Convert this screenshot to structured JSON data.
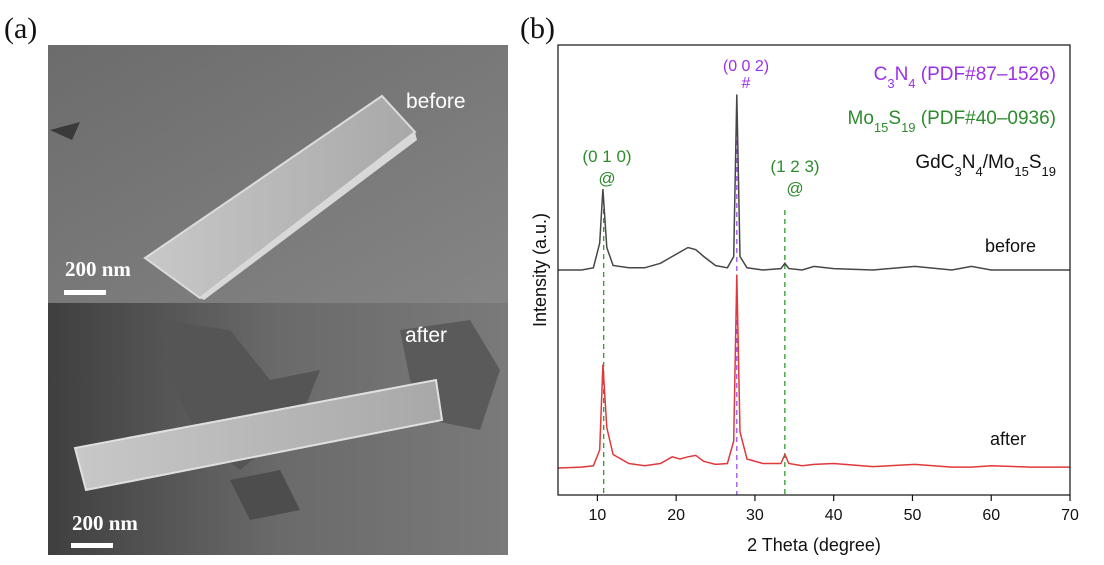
{
  "panels": {
    "a": "(a)",
    "b": "(b)",
    "before": "before",
    "after": "after",
    "scale_top": "200 nm",
    "scale_bottom": "200 nm"
  },
  "chart_data": {
    "type": "line",
    "xlabel": "2 Theta (degree)",
    "ylabel": "Intensity (a.u.)",
    "xlim": [
      5,
      70
    ],
    "xticks": [
      10,
      20,
      30,
      40,
      50,
      60,
      70
    ],
    "ylim": [
      0,
      100
    ],
    "x": [
      5,
      8,
      9.5,
      10.3,
      10.7,
      11.2,
      12,
      14,
      16,
      18,
      19.5,
      20.5,
      21.5,
      22.5,
      23.5,
      25,
      26.5,
      27.3,
      27.7,
      28.1,
      29,
      31,
      33.3,
      33.8,
      34.3,
      36,
      37.5,
      40,
      45,
      50.3,
      55,
      57.5,
      60,
      65,
      70
    ],
    "series": [
      {
        "name": "before",
        "color": "#474747",
        "values": [
          50,
          50,
          50.5,
          56,
          68,
          55,
          51,
          50.5,
          50.5,
          51.5,
          53,
          54,
          55,
          54.5,
          53,
          51,
          50.5,
          53,
          89,
          53,
          50.5,
          50,
          50.3,
          51.5,
          50.3,
          50,
          50.8,
          50.3,
          50,
          50.8,
          50,
          50.8,
          50,
          50,
          50
        ]
      },
      {
        "name": "after",
        "color": "#e0393b",
        "values": [
          6,
          6.2,
          6.5,
          10,
          29,
          15,
          9,
          7,
          6.5,
          7,
          8.5,
          8,
          8.5,
          8.8,
          7.5,
          6.8,
          7,
          12,
          49,
          14,
          8,
          7,
          7,
          9,
          7,
          6.5,
          6.8,
          7,
          6.3,
          6.8,
          6.2,
          6.2,
          6.5,
          6.2,
          6.2
        ]
      }
    ],
    "reference_lines": [
      {
        "x": 10.8,
        "color": "#2e9a2e"
      },
      {
        "x": 27.7,
        "color": "#9b4de8"
      },
      {
        "x": 33.8,
        "color": "#2e9a2e"
      }
    ],
    "annotations": [
      {
        "text": "(0 1 0)",
        "color": "#2e8b2e"
      },
      {
        "text": "@",
        "color": "#2e8b2e"
      },
      {
        "text": "(1 2 3)",
        "color": "#2e8b2e"
      },
      {
        "text": "@",
        "color": "#2e8b2e"
      },
      {
        "text": "(0 0 2)",
        "color": "#9b30e8"
      },
      {
        "text": "#",
        "color": "#9b30e8"
      }
    ],
    "legend": [
      {
        "color": "#9b30e8",
        "parts": [
          {
            "text": "C"
          },
          {
            "text": "3",
            "sub": true
          },
          {
            "text": "N"
          },
          {
            "text": "4",
            "sub": true
          },
          {
            "text": " (PDF#87–1526)"
          }
        ]
      },
      {
        "color": "#2e8b2e",
        "parts": [
          {
            "text": "Mo"
          },
          {
            "text": "15",
            "sub": true
          },
          {
            "text": "S"
          },
          {
            "text": "19",
            "sub": true
          },
          {
            "text": " (PDF#40–0936)"
          }
        ]
      },
      {
        "color": "#111111",
        "parts": [
          {
            "text": "GdC"
          },
          {
            "text": "3",
            "sub": true
          },
          {
            "text": "N"
          },
          {
            "text": "4",
            "sub": true
          },
          {
            "text": "/Mo"
          },
          {
            "text": "15",
            "sub": true
          },
          {
            "text": "S"
          },
          {
            "text": "19",
            "sub": true
          }
        ]
      }
    ]
  }
}
